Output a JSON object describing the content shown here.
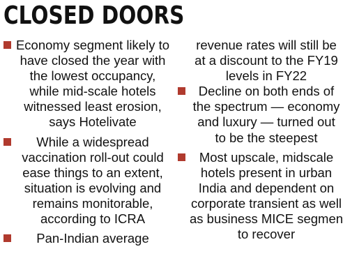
{
  "headline": "CLOSED DOORS",
  "accent_color": "#b03a2e",
  "left_column": [
    {
      "lines": [
        "Economy segment likely to",
        "have closed the year with",
        "the lowest occupancy,",
        "while mid-scale hotels",
        "witnessed least erosion,",
        "says Hotelivate"
      ]
    },
    {
      "lines": [
        "While a widespread",
        "vaccination roll-out could",
        "ease things to an extent,",
        "situation is evolving and",
        "remains monitorable,",
        "according to ICRA"
      ]
    },
    {
      "lines": [
        "Pan-Indian average"
      ]
    }
  ],
  "right_column_continuation": [
    "revenue rates will still be",
    "at a discount to the FY19",
    "levels in FY22"
  ],
  "right_column": [
    {
      "lines": [
        "Decline on both ends of",
        "the spectrum — economy",
        "and luxury — turned out",
        "to be the steepest"
      ]
    },
    {
      "lines": [
        "Most upscale, midscale",
        "hotels present in urban",
        "India and dependent on",
        "corporate transient as well",
        "as business MICE segments",
        "to recover"
      ]
    }
  ]
}
